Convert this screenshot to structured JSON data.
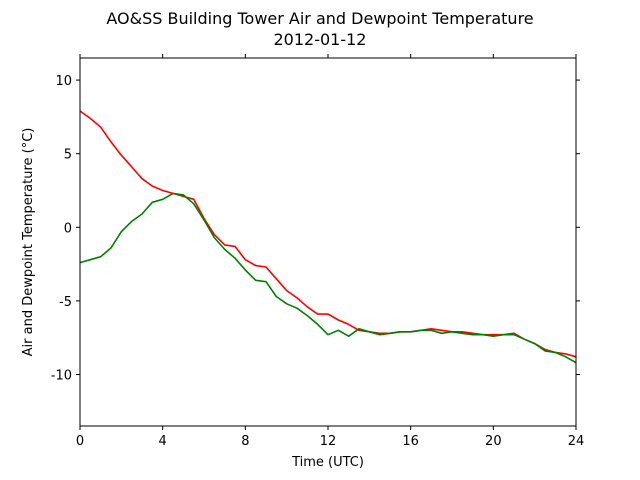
{
  "chart_data": {
    "type": "line",
    "title": "AO&SS Building Tower Air and Dewpoint Temperature",
    "subtitle": "2012-01-12",
    "xlabel": "Time (UTC)",
    "ylabel": "Air and Dewpoint Temperature (°C)",
    "xlim": [
      0,
      24
    ],
    "ylim": [
      -13.5,
      11.5
    ],
    "xticks": [
      0,
      4,
      8,
      12,
      16,
      20,
      24
    ],
    "yticks": [
      -10,
      -5,
      0,
      5,
      10
    ],
    "grid": false,
    "legend": "none",
    "series": [
      {
        "color": "#ff0000",
        "x": [
          0,
          0.5,
          1,
          1.5,
          2,
          2.5,
          3,
          3.5,
          4,
          4.5,
          5,
          5.5,
          6,
          6.5,
          7,
          7.5,
          8,
          8.5,
          9,
          9.5,
          10,
          10.5,
          11,
          11.5,
          12,
          12.5,
          13,
          13.5,
          14,
          14.5,
          15,
          15.5,
          16,
          16.5,
          17,
          17.5,
          18,
          18.5,
          19,
          19.5,
          20,
          20.5,
          21,
          21.5,
          22,
          22.5,
          23,
          23.5,
          24
        ],
        "y": [
          7.9,
          7.4,
          6.8,
          5.8,
          4.9,
          4.1,
          3.3,
          2.8,
          2.5,
          2.3,
          2.1,
          1.9,
          0.6,
          -0.5,
          -1.2,
          -1.3,
          -2.2,
          -2.6,
          -2.7,
          -3.5,
          -4.3,
          -4.8,
          -5.4,
          -5.9,
          -5.9,
          -6.3,
          -6.6,
          -7.0,
          -7.1,
          -7.2,
          -7.2,
          -7.1,
          -7.1,
          -7.0,
          -6.9,
          -7.0,
          -7.1,
          -7.1,
          -7.2,
          -7.3,
          -7.3,
          -7.3,
          -7.2,
          -7.6,
          -7.9,
          -8.3,
          -8.5,
          -8.6,
          -8.8
        ]
      },
      {
        "color": "#008000",
        "x": [
          0,
          0.5,
          1,
          1.5,
          2,
          2.5,
          3,
          3.5,
          4,
          4.5,
          5,
          5.5,
          6,
          6.5,
          7,
          7.5,
          8,
          8.5,
          9,
          9.5,
          10,
          10.5,
          11,
          11.5,
          12,
          12.5,
          13,
          13.5,
          14,
          14.5,
          15,
          15.5,
          16,
          16.5,
          17,
          17.5,
          18,
          18.5,
          19,
          19.5,
          20,
          20.5,
          21,
          21.5,
          22,
          22.5,
          23,
          23.5,
          24
        ],
        "y": [
          -2.4,
          -2.2,
          -2.0,
          -1.4,
          -0.3,
          0.4,
          0.9,
          1.7,
          1.9,
          2.3,
          2.2,
          1.6,
          0.5,
          -0.7,
          -1.5,
          -2.1,
          -2.9,
          -3.6,
          -3.7,
          -4.7,
          -5.2,
          -5.5,
          -6.0,
          -6.6,
          -7.3,
          -7.0,
          -7.4,
          -6.9,
          -7.1,
          -7.3,
          -7.2,
          -7.1,
          -7.1,
          -7.0,
          -7.0,
          -7.2,
          -7.1,
          -7.2,
          -7.3,
          -7.3,
          -7.4,
          -7.3,
          -7.3,
          -7.6,
          -7.9,
          -8.4,
          -8.5,
          -8.8,
          -9.2
        ]
      }
    ]
  }
}
